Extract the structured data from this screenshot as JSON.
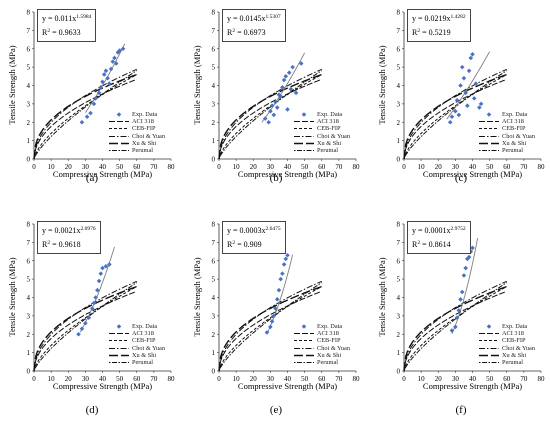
{
  "chart_data": [
    {
      "type": "scatter",
      "panel": "(a)",
      "xlabel": "Compressive Strength (MPa)",
      "ylabel": "Tensile Strength (MPa)",
      "xlim": [
        0,
        80
      ],
      "ylim": [
        0,
        8
      ],
      "xticks": [
        "0",
        "10",
        "20",
        "30",
        "40",
        "50",
        "60",
        "70",
        "80"
      ],
      "yticks": [
        "0",
        "1",
        "2",
        "3",
        "4",
        "5",
        "6",
        "7",
        "8"
      ],
      "equation": {
        "coef": "0.011",
        "exp": "1.5984",
        "r2": "0.9633"
      },
      "fit": {
        "a": 0.011,
        "b": 1.5984,
        "x_range": [
          30,
          53
        ]
      },
      "points": [
        [
          28,
          2.0
        ],
        [
          31,
          2.3
        ],
        [
          33,
          2.5
        ],
        [
          35,
          3.0
        ],
        [
          36,
          3.3
        ],
        [
          38,
          3.6
        ],
        [
          39,
          3.9
        ],
        [
          40,
          4.2
        ],
        [
          41,
          4.6
        ],
        [
          42,
          4.8
        ],
        [
          43,
          4.4
        ],
        [
          44,
          4.1
        ],
        [
          45,
          4.9
        ],
        [
          46,
          5.3
        ],
        [
          47,
          5.5
        ],
        [
          48,
          5.2
        ],
        [
          49,
          5.8
        ],
        [
          50,
          5.9
        ],
        [
          52,
          6.0
        ]
      ]
    },
    {
      "type": "scatter",
      "panel": "(b)",
      "xlabel": "Compressive Strength (MPa)",
      "ylabel": "Tensile Strength (MPa)",
      "xlim": [
        0,
        80
      ],
      "ylim": [
        0,
        8
      ],
      "xticks": [
        "0",
        "10",
        "20",
        "30",
        "40",
        "50",
        "60",
        "70",
        "80"
      ],
      "yticks": [
        "0",
        "1",
        "2",
        "3",
        "4",
        "5",
        "6",
        "7",
        "8"
      ],
      "equation": {
        "coef": "0.0145",
        "exp": "1.5307",
        "r2": "0.6973"
      },
      "fit": {
        "a": 0.0145,
        "b": 1.5307,
        "x_range": [
          25,
          50
        ]
      },
      "points": [
        [
          27,
          2.2
        ],
        [
          29,
          2.0
        ],
        [
          30,
          2.6
        ],
        [
          31,
          2.9
        ],
        [
          32,
          2.4
        ],
        [
          33,
          3.1
        ],
        [
          34,
          2.8
        ],
        [
          35,
          3.5
        ],
        [
          36,
          3.4
        ],
        [
          37,
          3.9
        ],
        [
          38,
          4.3
        ],
        [
          39,
          4.5
        ],
        [
          40,
          2.7
        ],
        [
          41,
          4.7
        ],
        [
          42,
          3.8
        ],
        [
          43,
          5.0
        ],
        [
          45,
          3.6
        ],
        [
          48,
          5.2
        ]
      ]
    },
    {
      "type": "scatter",
      "panel": "(c)",
      "xlabel": "Compressive Strength (MPa)",
      "ylabel": "Tensile Strength (MPa)",
      "xlim": [
        0,
        80
      ],
      "ylim": [
        0,
        8
      ],
      "xticks": [
        "0",
        "10",
        "20",
        "30",
        "40",
        "50",
        "60",
        "70",
        "80"
      ],
      "yticks": [
        "0",
        "1",
        "2",
        "3",
        "4",
        "5",
        "6",
        "7",
        "8"
      ],
      "equation": {
        "coef": "0.0219",
        "exp": "1.4282",
        "r2": "0.5219"
      },
      "fit": {
        "a": 0.0219,
        "b": 1.4282,
        "x_range": [
          25,
          50
        ]
      },
      "points": [
        [
          27,
          2.0
        ],
        [
          28,
          2.3
        ],
        [
          30,
          2.6
        ],
        [
          31,
          3.2
        ],
        [
          32,
          2.4
        ],
        [
          33,
          4.0
        ],
        [
          34,
          5.0
        ],
        [
          35,
          4.4
        ],
        [
          36,
          3.6
        ],
        [
          37,
          2.9
        ],
        [
          38,
          4.8
        ],
        [
          39,
          5.5
        ],
        [
          40,
          5.7
        ],
        [
          41,
          3.3
        ],
        [
          42,
          4.1
        ],
        [
          44,
          2.8
        ],
        [
          45,
          3.0
        ]
      ]
    },
    {
      "type": "scatter",
      "panel": "(d)",
      "xlabel": "Compressive Strength (MPa)",
      "ylabel": "Tensile Strength (MPa)",
      "xlim": [
        0,
        80
      ],
      "ylim": [
        0,
        8
      ],
      "xticks": [
        "0",
        "10",
        "20",
        "30",
        "40",
        "50",
        "60",
        "70",
        "80"
      ],
      "yticks": [
        "0",
        "1",
        "2",
        "3",
        "4",
        "5",
        "6",
        "7",
        "8"
      ],
      "equation": {
        "coef": "0.0021",
        "exp": "2.0976",
        "r2": "0.9618"
      },
      "fit": {
        "a": 0.0021,
        "b": 2.0976,
        "x_range": [
          27,
          47
        ]
      },
      "points": [
        [
          26,
          2.0
        ],
        [
          28,
          2.3
        ],
        [
          30,
          2.6
        ],
        [
          32,
          2.9
        ],
        [
          34,
          3.4
        ],
        [
          35,
          3.7
        ],
        [
          36,
          4.0
        ],
        [
          37,
          4.4
        ],
        [
          38,
          4.9
        ],
        [
          39,
          5.3
        ],
        [
          40,
          5.6
        ],
        [
          42,
          5.7
        ],
        [
          44,
          5.8
        ]
      ]
    },
    {
      "type": "scatter",
      "panel": "(e)",
      "xlabel": "Compressive Strength (MPa)",
      "ylabel": "Tensile Strength (MPa)",
      "xlim": [
        0,
        80
      ],
      "ylim": [
        0,
        8
      ],
      "xticks": [
        "0",
        "10",
        "20",
        "30",
        "40",
        "50",
        "60",
        "70",
        "80"
      ],
      "yticks": [
        "0",
        "1",
        "2",
        "3",
        "4",
        "5",
        "6",
        "7",
        "8"
      ],
      "equation": {
        "coef": "0.0003",
        "exp": "2.6475",
        "r2": "0.909"
      },
      "fit": {
        "a": 0.0003,
        "b": 2.6475,
        "x_range": [
          28,
          43
        ]
      },
      "points": [
        [
          28,
          2.1
        ],
        [
          30,
          2.4
        ],
        [
          31,
          2.7
        ],
        [
          32,
          3.0
        ],
        [
          33,
          3.4
        ],
        [
          34,
          3.9
        ],
        [
          35,
          4.4
        ],
        [
          36,
          5.0
        ],
        [
          37,
          5.3
        ],
        [
          38,
          5.8
        ],
        [
          39,
          6.1
        ],
        [
          40,
          6.3
        ]
      ]
    },
    {
      "type": "scatter",
      "panel": "(f)",
      "xlabel": "Compressive Strength (MPa)",
      "ylabel": "Tensile Strength (MPa)",
      "xlim": [
        0,
        80
      ],
      "ylim": [
        0,
        8
      ],
      "xticks": [
        "0",
        "10",
        "20",
        "30",
        "40",
        "50",
        "60",
        "70",
        "80"
      ],
      "yticks": [
        "0",
        "1",
        "2",
        "3",
        "4",
        "5",
        "6",
        "7",
        "8"
      ],
      "equation": {
        "coef": "0.0001",
        "exp": "2.9752",
        "r2": "0.8614"
      },
      "fit": {
        "a": 0.0001,
        "b": 2.9752,
        "x_range": [
          28,
          43
        ]
      },
      "points": [
        [
          28,
          2.2
        ],
        [
          30,
          2.4
        ],
        [
          31,
          2.9
        ],
        [
          32,
          3.3
        ],
        [
          33,
          3.9
        ],
        [
          34,
          4.3
        ],
        [
          35,
          5.2
        ],
        [
          36,
          5.6
        ],
        [
          37,
          6.1
        ],
        [
          38,
          6.2
        ],
        [
          39,
          6.5
        ],
        [
          40,
          6.7
        ]
      ]
    }
  ],
  "legend": {
    "entries": [
      {
        "label": "Exp. Data",
        "style": "marker"
      },
      {
        "label": "ACI 318",
        "style": "long-dash"
      },
      {
        "label": "CEB-FIP",
        "style": "short-dash"
      },
      {
        "label": "Choi & Yuan",
        "style": "dash-dot"
      },
      {
        "label": "Xu & Shi",
        "style": "long-dash-heavy"
      },
      {
        "label": "Perumal",
        "style": "dot-dash"
      }
    ]
  },
  "models": [
    {
      "name": "ACI 318",
      "a": 0.56,
      "b": 0.5
    },
    {
      "name": "CEB-FIP",
      "a": 0.3,
      "b": 0.6667
    },
    {
      "name": "Choi & Yuan",
      "a": 0.63,
      "b": 0.5
    },
    {
      "name": "Xu & Shi",
      "a": 0.79,
      "b": 0.43
    },
    {
      "name": "Perumal",
      "a": 0.21,
      "b": 0.765
    }
  ],
  "colors": {
    "marker": "#4a72c4",
    "fit": "#7f7f7f",
    "axis": "#333333",
    "model": "#111111"
  },
  "panel_letters": [
    "(a)",
    "(b)",
    "(c)",
    "(d)",
    "(e)",
    "(f)"
  ]
}
